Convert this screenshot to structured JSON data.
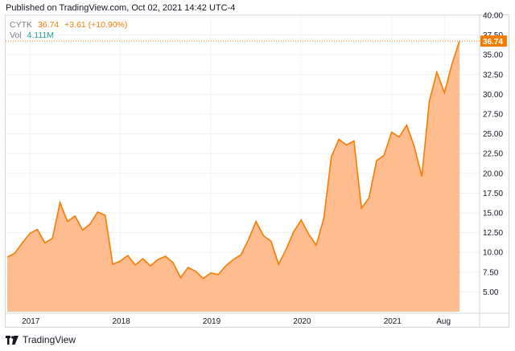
{
  "header": {
    "published": "Published on TradingView.com, Oct 02, 2021 14:42 UTC-4"
  },
  "legend": {
    "symbol": "CYTK",
    "last": "36.74",
    "change": "+3.61 (+10.90%)",
    "vol_label": "Vol",
    "vol_value": "4.111M"
  },
  "footer": {
    "brand": "TradingView",
    "logo_icon": "tradingview-logo-icon"
  },
  "colors": {
    "line": "#f57c00",
    "fill": "#ffb07a",
    "price_tag": "#f57c00",
    "text_muted": "#787b86",
    "volume": "#26a69a"
  },
  "chart_data": {
    "type": "area",
    "title": "",
    "xlabel": "",
    "ylabel": "",
    "ylim": [
      2.5,
      40
    ],
    "y_ticks": [
      "40.00",
      "37.50",
      "35.00",
      "32.50",
      "30.00",
      "27.50",
      "25.00",
      "22.50",
      "20.00",
      "17.50",
      "15.00",
      "12.50",
      "10.00",
      "7.50",
      "5.00"
    ],
    "x_ticks": [
      "2017",
      "2018",
      "2019",
      "2020",
      "2021",
      "Aug"
    ],
    "grid": true,
    "last_price_label": "36.74",
    "series": [
      {
        "values_by_date": [
          [
            "2016-10",
            9.4
          ],
          [
            "2016-11",
            9.9
          ],
          [
            "2016-12",
            11.2
          ],
          [
            "2017-01",
            12.4
          ],
          [
            "2017-02",
            12.9
          ],
          [
            "2017-03",
            11.2
          ],
          [
            "2017-04",
            11.8
          ],
          [
            "2017-05",
            16.3
          ],
          [
            "2017-06",
            13.9
          ],
          [
            "2017-07",
            14.6
          ],
          [
            "2017-08",
            12.8
          ],
          [
            "2017-09",
            13.6
          ],
          [
            "2017-10",
            15.1
          ],
          [
            "2017-11",
            14.7
          ],
          [
            "2017-12",
            8.5
          ],
          [
            "2018-01",
            8.9
          ],
          [
            "2018-02",
            9.6
          ],
          [
            "2018-03",
            8.4
          ],
          [
            "2018-04",
            9.2
          ],
          [
            "2018-05",
            8.3
          ],
          [
            "2018-06",
            9.1
          ],
          [
            "2018-07",
            9.5
          ],
          [
            "2018-08",
            8.7
          ],
          [
            "2018-09",
            6.8
          ],
          [
            "2018-10",
            8.1
          ],
          [
            "2018-11",
            7.6
          ],
          [
            "2018-12",
            6.7
          ],
          [
            "2019-01",
            7.4
          ],
          [
            "2019-02",
            7.2
          ],
          [
            "2019-03",
            8.3
          ],
          [
            "2019-04",
            9.1
          ],
          [
            "2019-05",
            9.7
          ],
          [
            "2019-06",
            11.6
          ],
          [
            "2019-07",
            13.9
          ],
          [
            "2019-08",
            12.1
          ],
          [
            "2019-09",
            11.4
          ],
          [
            "2019-10",
            8.5
          ],
          [
            "2019-11",
            10.4
          ],
          [
            "2019-12",
            12.6
          ],
          [
            "2020-01",
            14.1
          ],
          [
            "2020-02",
            12.3
          ],
          [
            "2020-03",
            10.9
          ],
          [
            "2020-04",
            14.3
          ],
          [
            "2020-05",
            22.1
          ],
          [
            "2020-06",
            24.3
          ],
          [
            "2020-07",
            23.6
          ],
          [
            "2020-08",
            24.1
          ],
          [
            "2020-09",
            15.6
          ],
          [
            "2020-10",
            16.9
          ],
          [
            "2020-11",
            21.6
          ],
          [
            "2020-12",
            22.3
          ],
          [
            "2021-01",
            25.2
          ],
          [
            "2021-02",
            24.6
          ],
          [
            "2021-03",
            26.1
          ],
          [
            "2021-04",
            23.4
          ],
          [
            "2021-05",
            19.6
          ],
          [
            "2021-06",
            29.1
          ],
          [
            "2021-07",
            32.8
          ],
          [
            "2021-08",
            30.2
          ],
          [
            "2021-09",
            33.8
          ],
          [
            "2021-10",
            36.74
          ]
        ]
      }
    ]
  }
}
